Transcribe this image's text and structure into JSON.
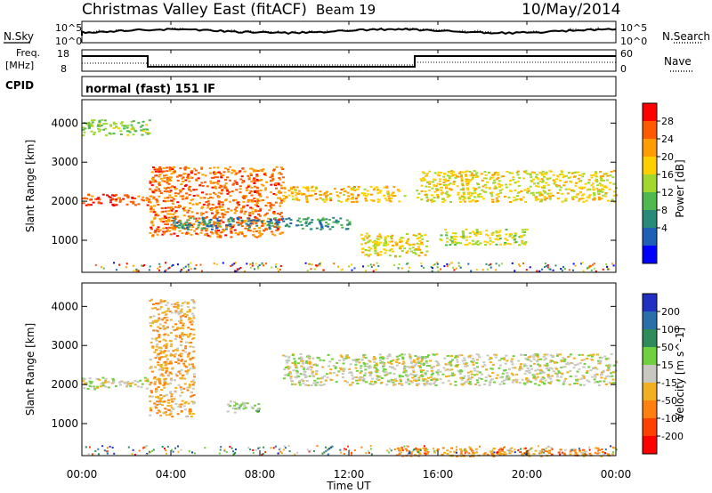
{
  "header": {
    "title": "Christmas Valley East (fitACF)",
    "beam": "Beam 19",
    "date": "10/May/2014"
  },
  "noise_panel": {
    "left_label": "N.Sky",
    "right_label": "N.Search",
    "left_ticks": [
      "10^5",
      "10^0"
    ],
    "right_ticks": [
      "10^5",
      "10^0"
    ]
  },
  "freq_panel": {
    "left_label_line1": "Freq.",
    "left_label_line2": "[MHz]",
    "right_label": "Nave",
    "left_ticks": [
      "18",
      "8"
    ],
    "right_ticks": [
      "60",
      "0"
    ]
  },
  "cpid": {
    "label": "CPID",
    "text": "normal (fast) 151 IF"
  },
  "power_panel": {
    "ylabel": "Slant Range [km]",
    "colorbar_label": "Power [dB]",
    "colorbar_ticks": [
      "28",
      "24",
      "20",
      "16",
      "12",
      "8",
      "4"
    ],
    "colorbar_colors": [
      "#ff0000",
      "#ff5a00",
      "#ff9e00",
      "#ffd000",
      "#a0d830",
      "#4fb84f",
      "#2a8a7a",
      "#1f5fb5",
      "#0000ff"
    ]
  },
  "velocity_panel": {
    "ylabel": "Slant Range [km]",
    "colorbar_label": "Velocity [m s^-1]",
    "colorbar_ticks": [
      "200",
      "100",
      "50",
      "15",
      "-15",
      "-50",
      "-100",
      "-200"
    ],
    "colorbar_colors": [
      "#2030c0",
      "#2a6fa8",
      "#2f8c5a",
      "#6fd040",
      "#c8c8c0",
      "#f0b020",
      "#ff8010",
      "#ff4000",
      "#ff0000"
    ]
  },
  "x_axis": {
    "label": "Time UT",
    "ticks": [
      "00:00",
      "04:00",
      "08:00",
      "12:00",
      "16:00",
      "20:00",
      "00:00"
    ]
  },
  "chart_data": [
    {
      "type": "heatmap",
      "title": "Power [dB]",
      "xlabel": "Time UT",
      "ylabel": "Slant Range [km]",
      "xlim": [
        0,
        24
      ],
      "ylim": [
        180,
        4600
      ],
      "yticks": [
        1000,
        2000,
        3000,
        4000
      ],
      "colorbar_range": [
        0,
        30
      ],
      "bands": [
        {
          "t0": 0.0,
          "t1": 3.0,
          "r0": 1900,
          "r1": 2200,
          "value": 26
        },
        {
          "t0": 0.0,
          "t1": 3.0,
          "r0": 3700,
          "r1": 4100,
          "value": 14
        },
        {
          "t0": 3.0,
          "t1": 9.0,
          "r0": 1100,
          "r1": 2900,
          "value": 24
        },
        {
          "t0": 4.0,
          "t1": 12.0,
          "r0": 1300,
          "r1": 1600,
          "value": 8
        },
        {
          "t0": 9.0,
          "t1": 14.5,
          "r0": 2000,
          "r1": 2400,
          "value": 20
        },
        {
          "t0": 12.5,
          "t1": 15.5,
          "r0": 600,
          "r1": 1200,
          "value": 18
        },
        {
          "t0": 15.0,
          "t1": 24.0,
          "r0": 2000,
          "r1": 2800,
          "value": 18
        },
        {
          "t0": 16.0,
          "t1": 20.0,
          "r0": 900,
          "r1": 1300,
          "value": 16
        }
      ]
    },
    {
      "type": "heatmap",
      "title": "Velocity [m s^-1]",
      "xlabel": "Time UT",
      "ylabel": "Slant Range [km]",
      "xlim": [
        0,
        24
      ],
      "ylim": [
        180,
        4600
      ],
      "yticks": [
        1000,
        2000,
        3000,
        4000
      ],
      "colorbar_range": [
        -250,
        250
      ],
      "bands": [
        {
          "t0": 0.0,
          "t1": 3.0,
          "r0": 1900,
          "r1": 2200,
          "value": 0
        },
        {
          "t0": 3.0,
          "t1": 5.0,
          "r0": 1200,
          "r1": 4200,
          "value": -60
        },
        {
          "t0": 6.5,
          "t1": 8.0,
          "r0": 1300,
          "r1": 1600,
          "value": 40
        },
        {
          "t0": 9.0,
          "t1": 24.0,
          "r0": 2000,
          "r1": 2800,
          "value": 0
        },
        {
          "t0": 14.0,
          "t1": 24.0,
          "r0": 180,
          "r1": 400,
          "value": -80
        }
      ]
    }
  ]
}
